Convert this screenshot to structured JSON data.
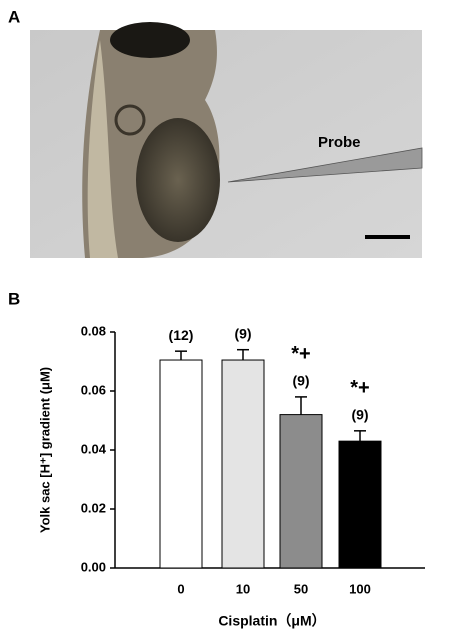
{
  "panel_a": {
    "label": "A",
    "annotation": "Probe"
  },
  "chart_data": {
    "type": "bar",
    "panel_label": "B",
    "ylabel": "Yolk sac [H⁺] gradient (μM)",
    "xlabel": "Cisplatin（μM）",
    "categories": [
      "0",
      "10",
      "50",
      "100"
    ],
    "values": [
      0.0705,
      0.0705,
      0.052,
      0.043
    ],
    "errors": [
      0.003,
      0.0035,
      0.006,
      0.0035
    ],
    "colors": [
      "#ffffff",
      "#e4e4e4",
      "#8c8c8c",
      "#000000"
    ],
    "n_labels": [
      "(12)",
      "(9)",
      "(9)",
      "(9)"
    ],
    "significance": [
      null,
      null,
      "*+",
      "*+"
    ],
    "ylim": [
      0,
      0.08
    ],
    "yticks": [
      {
        "value": 0,
        "label": "0.00"
      },
      0.02,
      0.04,
      0.06,
      0.08
    ]
  }
}
